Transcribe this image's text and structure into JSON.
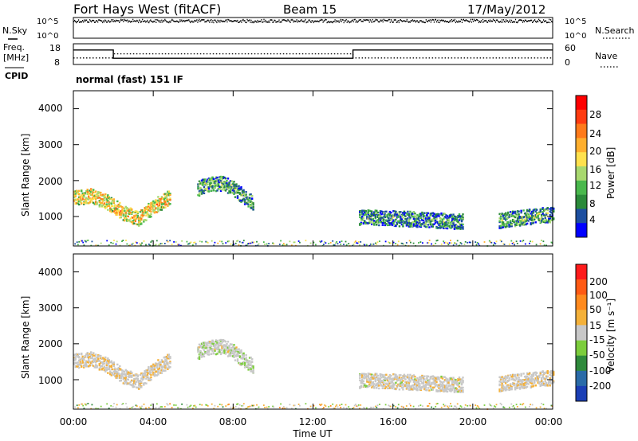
{
  "header": {
    "station": "Fort Hays West (fitACF)",
    "beam": "Beam 15",
    "date": "17/May/2012"
  },
  "noise_panel": {
    "left_label": "N.Sky",
    "right_label": "N.Search",
    "left_ticks": [
      "10^5",
      "10^0"
    ],
    "right_ticks": [
      "10^5",
      "10^0"
    ]
  },
  "freq_panel": {
    "left_label_1": "Freq.",
    "left_label_2": "[MHz]",
    "left_ticks": [
      "18",
      "8"
    ],
    "right_label": "Nave",
    "right_ticks": [
      "60",
      "0"
    ],
    "cpid_label": "CPID",
    "cpid_text": "normal (fast) 151 IF"
  },
  "time_axis": {
    "title": "Time UT",
    "ticks": [
      "00:00",
      "04:00",
      "08:00",
      "12:00",
      "16:00",
      "20:00",
      "00:00"
    ]
  },
  "panels": {
    "power": {
      "ylabel": "Slant Range [km]",
      "yticks": [
        "4000",
        "3000",
        "2000",
        "1000"
      ],
      "colorbar_label": "Power [dB]",
      "colorbar_ticks": [
        "28",
        "24",
        "20",
        "16",
        "12",
        "8",
        "4"
      ],
      "colors": [
        "#0000ff",
        "#1d4fa0",
        "#2b8a3a",
        "#49b84c",
        "#a8d86f",
        "#ffe14d",
        "#ffaf2e",
        "#ff7a1a",
        "#ff3b10",
        "#ff0000"
      ]
    },
    "velocity": {
      "ylabel": "Slant Range [km]",
      "yticks": [
        "4000",
        "3000",
        "2000",
        "1000"
      ],
      "colorbar_label": "Velocity [m s⁻¹]",
      "colorbar_ticks": [
        "200",
        "100",
        "50",
        "15",
        "-15",
        "-50",
        "-100",
        "-200"
      ],
      "colors": [
        "#1b3fb5",
        "#2a6ba8",
        "#2f8a3c",
        "#7ccd3c",
        "#c8c8c8",
        "#f4b13a",
        "#ff8a1e",
        "#ff5a14",
        "#ff1b1b"
      ]
    }
  },
  "chart_data": {
    "type": "heatmap",
    "x_axis": {
      "label": "Time UT",
      "range_hours": [
        0,
        24
      ],
      "tick_hours": [
        0,
        4,
        8,
        12,
        16,
        20,
        24
      ]
    },
    "y_axis": {
      "label": "Slant Range [km]",
      "range": [
        180,
        4500
      ],
      "ticks": [
        1000,
        2000,
        3000,
        4000
      ]
    },
    "power_scale_db": [
      0,
      30
    ],
    "velocity_scale": [
      -250,
      250
    ],
    "scatter_regions": [
      {
        "t_start": 0.0,
        "t_end": 4.8,
        "range_center": [
          1550,
          1600,
          1450,
          1150,
          950,
          1300,
          1550
        ],
        "power_db": 18,
        "velocity": -10
      },
      {
        "t_start": 6.2,
        "t_end": 9.0,
        "range_center": [
          1800,
          1900,
          1950,
          1850,
          1600,
          1400
        ],
        "power_db": 10,
        "velocity": 5
      },
      {
        "t_start": 14.3,
        "t_end": 19.5,
        "range_center": [
          1000,
          980,
          960,
          940,
          900,
          880
        ],
        "power_db": 9,
        "velocity": -5
      },
      {
        "t_start": 21.3,
        "t_end": 24.0,
        "range_center": [
          900,
          960,
          1000,
          1050,
          1080
        ],
        "power_db": 10,
        "velocity": -8
      }
    ],
    "noise_sky": {
      "t_start": 0.0,
      "value_log": 4.3
    },
    "frequency_mhz": [
      {
        "t": 0.0,
        "v": 15
      },
      {
        "t": 2.0,
        "v": 15
      },
      {
        "t": 2.0,
        "v": 11
      },
      {
        "t": 14.0,
        "v": 11
      },
      {
        "t": 14.0,
        "v": 15
      },
      {
        "t": 24.0,
        "v": 15
      }
    ],
    "nave": [
      {
        "t": 0.0,
        "v": 19
      },
      {
        "t": 2.0,
        "v": 19
      },
      {
        "t": 2.0,
        "v": 31
      },
      {
        "t": 14.0,
        "v": 31
      },
      {
        "t": 14.0,
        "v": 19
      },
      {
        "t": 24.0,
        "v": 19
      }
    ]
  }
}
